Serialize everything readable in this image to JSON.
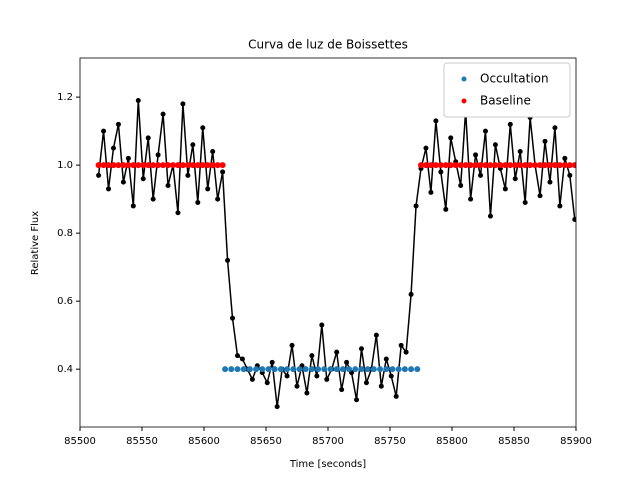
{
  "chart_data": {
    "type": "scatter-line",
    "title": "Curva de luz de Boissettes",
    "x_label": "Time [seconds]",
    "y_label": "Relative Flux",
    "xlim": [
      85500,
      85900
    ],
    "xticks": [
      85500,
      85550,
      85600,
      85650,
      85700,
      85750,
      85800,
      85850,
      85900
    ],
    "ylim": [
      0.23,
      1.315
    ],
    "yticks": [
      0.4,
      0.6,
      0.8,
      {
        "value": 1,
        "label": "1.0"
      },
      1.2
    ],
    "legend": "upper right",
    "series": [
      {
        "color": "#000000",
        "line": true,
        "x": [
          85515,
          85519,
          85523,
          85527,
          85531,
          85535,
          85539,
          85543,
          85547,
          85551,
          85555,
          85559,
          85563,
          85567,
          85571,
          85575,
          85579,
          85583,
          85587,
          85591,
          85595,
          85599,
          85603,
          85607,
          85611,
          85615,
          85619,
          85623,
          85627,
          85631,
          85635,
          85639,
          85643,
          85647,
          85651,
          85655,
          85659,
          85663,
          85667,
          85671,
          85675,
          85679,
          85683,
          85687,
          85691,
          85695,
          85699,
          85703,
          85707,
          85711,
          85715,
          85719,
          85723,
          85727,
          85731,
          85735,
          85739,
          85743,
          85747,
          85751,
          85755,
          85759,
          85763,
          85767,
          85771,
          85775,
          85779,
          85783,
          85787,
          85791,
          85795,
          85799,
          85803,
          85807,
          85811,
          85815,
          85819,
          85823,
          85827,
          85831,
          85835,
          85839,
          85843,
          85847,
          85851,
          85855,
          85859,
          85863,
          85867,
          85871,
          85875,
          85879,
          85883,
          85887,
          85891,
          85895,
          85899
        ],
        "values": [
          0.97,
          1.1,
          0.93,
          1.05,
          1.12,
          0.95,
          1.02,
          0.88,
          1.19,
          0.96,
          1.08,
          0.9,
          1.03,
          1.15,
          0.94,
          1.0,
          0.86,
          1.18,
          0.97,
          1.06,
          0.89,
          1.11,
          0.93,
          1.04,
          0.9,
          0.98,
          0.72,
          0.55,
          0.44,
          0.43,
          0.4,
          0.37,
          0.41,
          0.39,
          0.36,
          0.42,
          0.29,
          0.4,
          0.38,
          0.47,
          0.35,
          0.41,
          0.33,
          0.44,
          0.38,
          0.53,
          0.37,
          0.4,
          0.45,
          0.34,
          0.42,
          0.39,
          0.31,
          0.46,
          0.36,
          0.4,
          0.5,
          0.35,
          0.43,
          0.38,
          0.32,
          0.47,
          0.45,
          0.62,
          0.88,
          0.99,
          1.05,
          0.92,
          1.13,
          0.98,
          0.87,
          1.08,
          1.01,
          0.94,
          1.16,
          0.9,
          1.03,
          0.97,
          1.1,
          0.85,
          1.06,
          0.99,
          0.93,
          1.12,
          0.96,
          1.04,
          0.89,
          1.14,
          1.0,
          0.91,
          1.07,
          0.95,
          1.11,
          0.88,
          1.02,
          0.97,
          0.84
        ]
      },
      {
        "name": "Occultation",
        "color": "#1f77b4",
        "line": false,
        "x": [
          85617,
          85622,
          85627,
          85632,
          85637,
          85642,
          85647,
          85652,
          85657,
          85662,
          85667,
          85672,
          85677,
          85682,
          85687,
          85692,
          85697,
          85702,
          85707,
          85712,
          85717,
          85722,
          85727,
          85732,
          85737,
          85742,
          85747,
          85752,
          85757,
          85762,
          85767,
          85772
        ],
        "values": [
          0.4,
          0.4,
          0.4,
          0.4,
          0.4,
          0.4,
          0.4,
          0.4,
          0.4,
          0.4,
          0.4,
          0.4,
          0.4,
          0.4,
          0.4,
          0.4,
          0.4,
          0.4,
          0.4,
          0.4,
          0.4,
          0.4,
          0.4,
          0.4,
          0.4,
          0.4,
          0.4,
          0.4,
          0.4,
          0.4,
          0.4,
          0.4
        ]
      },
      {
        "name": "Baseline",
        "color": "#ff0000",
        "line": false,
        "x": [
          85515,
          85519,
          85523,
          85527,
          85531,
          85535,
          85539,
          85543,
          85547,
          85551,
          85555,
          85559,
          85563,
          85567,
          85571,
          85575,
          85579,
          85583,
          85587,
          85591,
          85595,
          85599,
          85603,
          85607,
          85611,
          85615,
          85775,
          85779,
          85783,
          85787,
          85791,
          85795,
          85799,
          85803,
          85807,
          85811,
          85815,
          85819,
          85823,
          85827,
          85831,
          85835,
          85839,
          85843,
          85847,
          85851,
          85855,
          85859,
          85863,
          85867,
          85871,
          85875,
          85879,
          85883,
          85887,
          85891,
          85895,
          85899
        ],
        "values": [
          1,
          1,
          1,
          1,
          1,
          1,
          1,
          1,
          1,
          1,
          1,
          1,
          1,
          1,
          1,
          1,
          1,
          1,
          1,
          1,
          1,
          1,
          1,
          1,
          1,
          1,
          1,
          1,
          1,
          1,
          1,
          1,
          1,
          1,
          1,
          1,
          1,
          1,
          1,
          1,
          1,
          1,
          1,
          1,
          1,
          1,
          1,
          1,
          1,
          1,
          1,
          1,
          1,
          1,
          1,
          1,
          1,
          1
        ]
      }
    ]
  }
}
